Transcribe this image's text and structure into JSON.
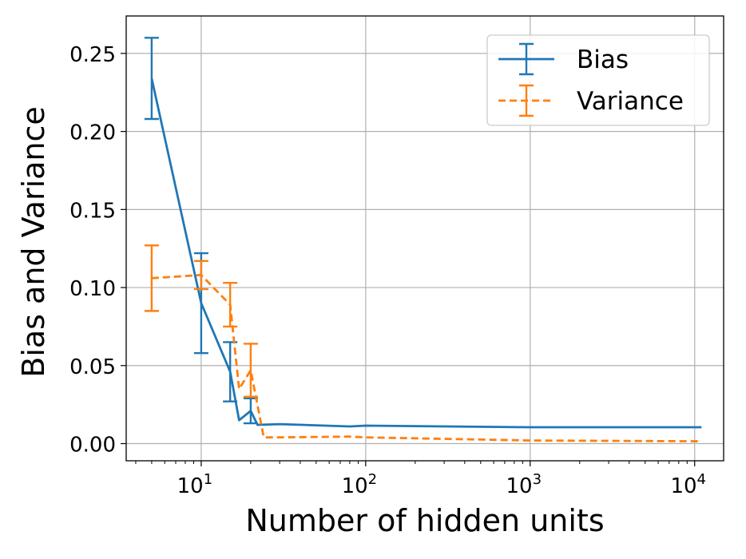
{
  "chart_data": {
    "type": "line",
    "xscale": "log",
    "xlim": [
      3.5,
      15000
    ],
    "ylim": [
      -0.011,
      0.274
    ],
    "grid": true,
    "xlabel": "Number of hidden units",
    "ylabel": "Bias and Variance",
    "xticks": [
      {
        "value": 10,
        "base": "10",
        "exp": "1"
      },
      {
        "value": 100,
        "base": "10",
        "exp": "2"
      },
      {
        "value": 1000,
        "base": "10",
        "exp": "3"
      },
      {
        "value": 10000,
        "base": "10",
        "exp": "4"
      }
    ],
    "yticks": [
      {
        "value": 0.0,
        "label": "0.00"
      },
      {
        "value": 0.05,
        "label": "0.05"
      },
      {
        "value": 0.1,
        "label": "0.10"
      },
      {
        "value": 0.15,
        "label": "0.15"
      },
      {
        "value": 0.2,
        "label": "0.20"
      },
      {
        "value": 0.25,
        "label": "0.25"
      }
    ],
    "legend_position": "top-right",
    "series": [
      {
        "name": "Bias",
        "color": "#1f77b4",
        "dash": "solid",
        "points": [
          {
            "x": 5,
            "y": 0.234,
            "err": 0.026
          },
          {
            "x": 10,
            "y": 0.09,
            "err": 0.032
          },
          {
            "x": 15,
            "y": 0.046,
            "err": 0.019
          },
          {
            "x": 17,
            "y": 0.015,
            "err": 0.0
          },
          {
            "x": 20,
            "y": 0.021,
            "err": 0.008
          },
          {
            "x": 22,
            "y": 0.012,
            "err": 0.0
          },
          {
            "x": 30,
            "y": 0.0125,
            "err": 0.0
          },
          {
            "x": 80,
            "y": 0.011,
            "err": 0.0
          },
          {
            "x": 100,
            "y": 0.0115,
            "err": 0.0
          },
          {
            "x": 1000,
            "y": 0.0105,
            "err": 0.0
          },
          {
            "x": 11000,
            "y": 0.0105,
            "err": 0.0
          }
        ]
      },
      {
        "name": "Variance",
        "color": "#ff7f0e",
        "dash": "dashed",
        "points": [
          {
            "x": 5,
            "y": 0.106,
            "err": 0.021
          },
          {
            "x": 10,
            "y": 0.108,
            "err": 0.009
          },
          {
            "x": 15,
            "y": 0.089,
            "err": 0.014
          },
          {
            "x": 17,
            "y": 0.035,
            "err": 0.0
          },
          {
            "x": 20,
            "y": 0.047,
            "err": 0.017
          },
          {
            "x": 24,
            "y": 0.004,
            "err": 0.0
          },
          {
            "x": 30,
            "y": 0.004,
            "err": 0.0
          },
          {
            "x": 80,
            "y": 0.0045,
            "err": 0.0
          },
          {
            "x": 100,
            "y": 0.004,
            "err": 0.0
          },
          {
            "x": 1000,
            "y": 0.002,
            "err": 0.0
          },
          {
            "x": 11000,
            "y": 0.0015,
            "err": 0.0
          }
        ]
      }
    ]
  }
}
